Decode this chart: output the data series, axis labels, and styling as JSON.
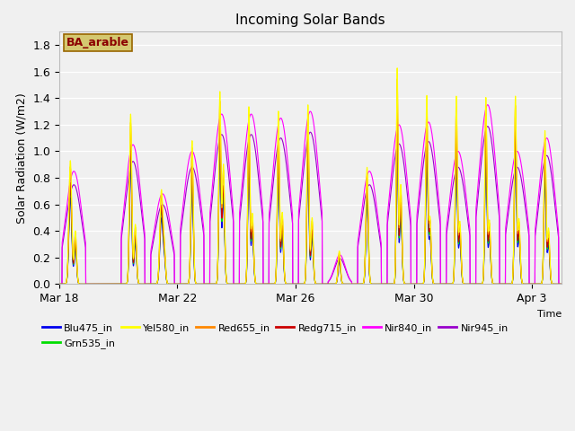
{
  "title": "Incoming Solar Bands",
  "xlabel": "Time",
  "ylabel": "Solar Radiation (W/m2)",
  "ylim": [
    0,
    1.9
  ],
  "annotation_text": "BA_arable",
  "annotation_color": "#8B0000",
  "annotation_bg": "#d4c870",
  "background_color": "#f0f0f0",
  "plot_bg": "#f0f0f0",
  "grid_color": "white",
  "series": {
    "Blu475_in": {
      "color": "#0000ee",
      "linewidth": 0.8
    },
    "Grn535_in": {
      "color": "#00dd00",
      "linewidth": 0.8
    },
    "Yel580_in": {
      "color": "#ffff00",
      "linewidth": 0.8
    },
    "Red655_in": {
      "color": "#ff8800",
      "linewidth": 0.8
    },
    "Redg715_in": {
      "color": "#cc0000",
      "linewidth": 0.8
    },
    "Nir840_in": {
      "color": "#ff00ff",
      "linewidth": 0.8
    },
    "Nir945_in": {
      "color": "#9900cc",
      "linewidth": 0.8
    }
  },
  "xtick_labels": [
    "Mar 18",
    "Mar 22",
    "Mar 26",
    "Mar 30",
    "Apr 3"
  ],
  "xtick_positions": [
    0,
    4,
    8,
    12,
    16
  ],
  "ytick_labels": [
    "0.0",
    "0.2",
    "0.4",
    "0.6",
    "0.8",
    "1.0",
    "1.2",
    "1.4",
    "1.6",
    "1.8"
  ],
  "num_days": 17,
  "points_per_day": 300,
  "legend_ncol": 6
}
